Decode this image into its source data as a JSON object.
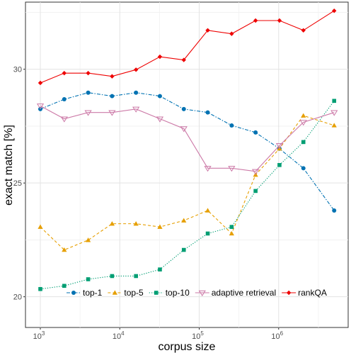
{
  "chart_data": {
    "type": "line",
    "title": "",
    "xlabel": "corpus size",
    "ylabel": "exact match [%]",
    "x_scale": "log10",
    "x_ticks": [
      {
        "value": 1000,
        "mantissa": "10",
        "exp": "3"
      },
      {
        "value": 10000,
        "mantissa": "10",
        "exp": "4"
      },
      {
        "value": 100000,
        "mantissa": "10",
        "exp": "5"
      },
      {
        "value": 1000000,
        "mantissa": "10",
        "exp": "6"
      }
    ],
    "y_ticks": [
      "20",
      "25",
      "30"
    ],
    "xlim": [
      650,
      7500000
    ],
    "ylim": [
      18.65,
      32.95
    ],
    "grid": true,
    "legend_position": "bottom-inside",
    "x": [
      1000,
      2000,
      4000,
      8000,
      16000,
      32000,
      64000,
      128000,
      256000,
      512000,
      1024000,
      2048000,
      5000000
    ],
    "series": [
      {
        "name": "top-1",
        "color": "#0072B2",
        "marker": "circle",
        "dash": "dashdot",
        "values": [
          28.25,
          28.68,
          28.97,
          28.82,
          28.97,
          28.82,
          28.25,
          28.1,
          27.53,
          27.22,
          26.51,
          25.65,
          23.79
        ]
      },
      {
        "name": "top-5",
        "color": "#E69F00",
        "marker": "triangle",
        "dash": "dashed",
        "values": [
          23.07,
          22.06,
          22.49,
          23.21,
          23.21,
          23.07,
          23.35,
          23.79,
          22.78,
          25.36,
          26.51,
          27.96,
          27.53
        ]
      },
      {
        "name": "top-10",
        "color": "#009E73",
        "marker": "square",
        "dash": "dotted",
        "values": [
          20.34,
          20.48,
          20.77,
          20.91,
          20.91,
          21.2,
          22.06,
          22.78,
          23.07,
          24.65,
          25.79,
          26.8,
          28.61
        ]
      },
      {
        "name": "adaptive retrieval",
        "color": "#CC79A7",
        "marker": "triangle-down-open",
        "dash": "solid",
        "values": [
          28.39,
          27.82,
          28.1,
          28.1,
          28.25,
          27.82,
          27.39,
          25.65,
          25.65,
          25.51,
          26.65,
          27.67,
          28.1
        ]
      },
      {
        "name": "rankQA",
        "color": "#EE0000",
        "marker": "diamond",
        "dash": "solid",
        "values": [
          29.4,
          29.83,
          29.83,
          29.69,
          29.98,
          30.55,
          30.41,
          31.71,
          31.56,
          32.14,
          32.14,
          31.71,
          32.57
        ]
      }
    ]
  }
}
